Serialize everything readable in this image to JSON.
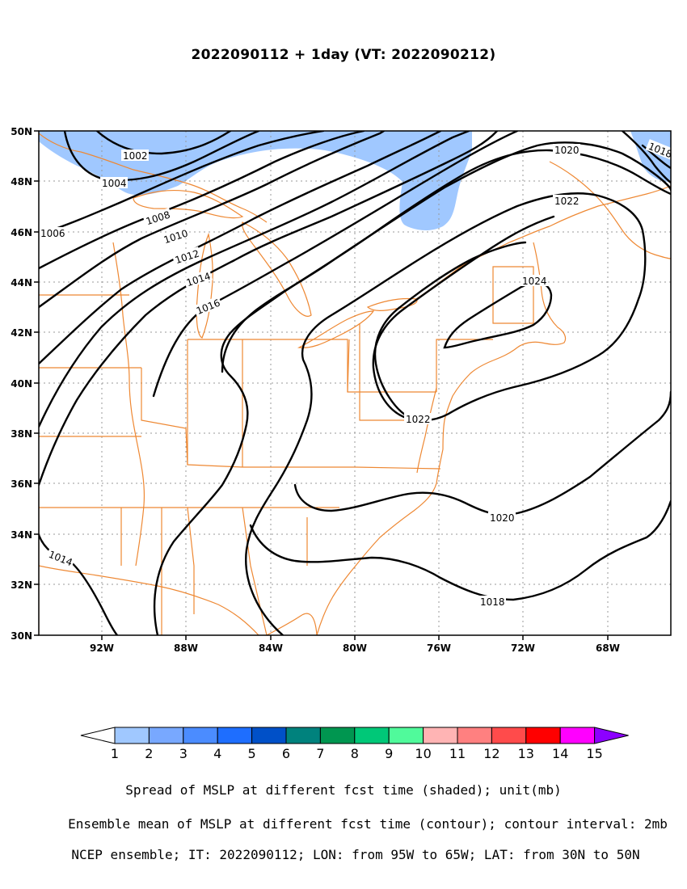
{
  "title": "2022090112 + 1day (VT: 2022090212)",
  "axes": {
    "lat_ticks": [
      "50N",
      "48N",
      "46N",
      "44N",
      "42N",
      "40N",
      "38N",
      "36N",
      "34N",
      "32N",
      "30N"
    ],
    "lon_ticks": [
      "92W",
      "88W",
      "84W",
      "80W",
      "76W",
      "72W",
      "68W"
    ]
  },
  "contours": {
    "labels": [
      "1002",
      "1004",
      "1006",
      "1008",
      "1010",
      "1012",
      "1014",
      "1016",
      "1018",
      "1020",
      "1022",
      "1024",
      "1022",
      "1020",
      "1018",
      "1014"
    ]
  },
  "colorbar": {
    "levels": [
      "1",
      "2",
      "3",
      "4",
      "5",
      "6",
      "7",
      "8",
      "9",
      "10",
      "11",
      "12",
      "13",
      "14",
      "15"
    ],
    "colors": [
      "#ffffff",
      "#a0c8ff",
      "#78a8ff",
      "#4b8cff",
      "#1e6eff",
      "#0050c8",
      "#00827d",
      "#009650",
      "#00c878",
      "#50fa9b",
      "#ffb4b4",
      "#ff8080",
      "#ff4b4b",
      "#ff0000",
      "#ff00ff",
      "#8c00ff"
    ]
  },
  "captions": {
    "line1": "Spread of MSLP at different fcst time (shaded); unit(mb)",
    "line2": "Ensemble mean of MSLP at different fcst time (contour); contour interval: 2mb",
    "line3": "NCEP ensemble; IT: 2022090112; LON: from 95W to 65W; LAT: from 30N to 50N"
  },
  "colors": {
    "coastline": "#ee8833",
    "spread_shading": "#a0c8ff",
    "contour": "#000000",
    "grid": "#999999"
  }
}
